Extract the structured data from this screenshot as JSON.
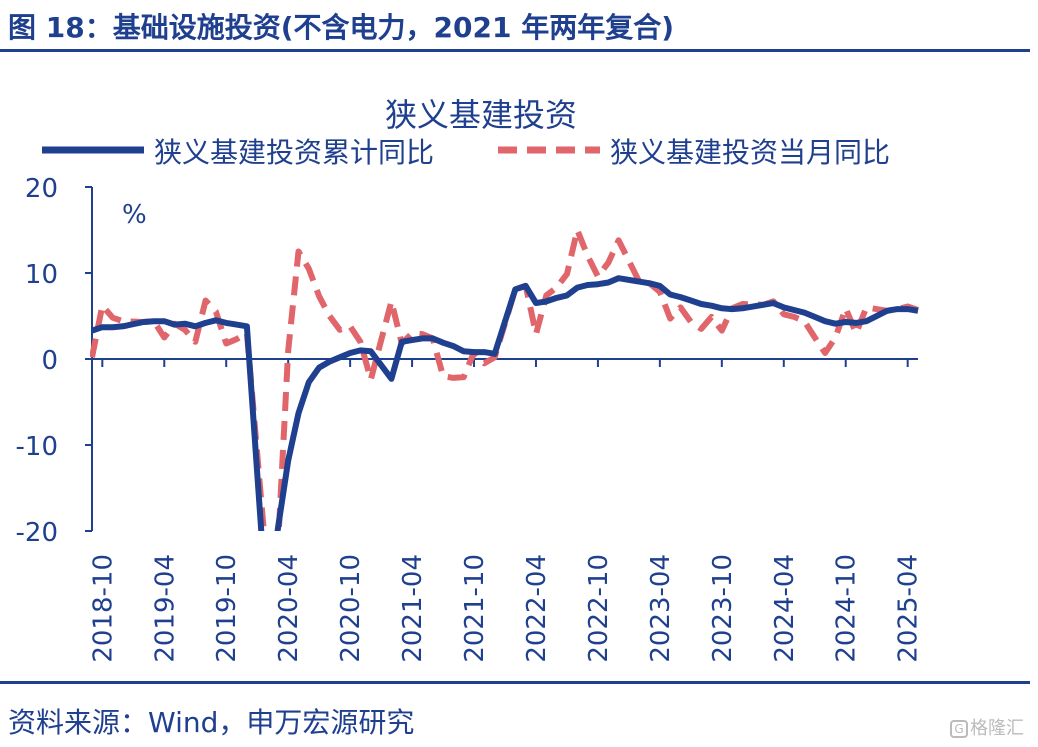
{
  "figure": {
    "title": "图 18：基础设施投资(不含电力，2021 年两年复合)",
    "source": "资料来源：Wind，申万宏源研究",
    "watermark": "格隆汇"
  },
  "colors": {
    "brand": "#1f3f8f",
    "cumulative": "#1f3f8f",
    "monthly": "#e0666b",
    "axis": "#1f3f8f"
  },
  "chart_data": {
    "type": "line",
    "title": "狭义基建投资",
    "ylabel": "%",
    "xlabel": "",
    "ylim": [
      -20,
      20
    ],
    "yticks": [
      20,
      10,
      0,
      -10,
      -20
    ],
    "xtick_labels": [
      "2018-10",
      "2019-04",
      "2019-10",
      "2020-04",
      "2020-10",
      "2021-04",
      "2021-10",
      "2022-04",
      "2022-10",
      "2023-04",
      "2023-10",
      "2024-04",
      "2024-10",
      "2025-04"
    ],
    "grid": false,
    "legend_position": "top",
    "series": [
      {
        "name": "狭义基建投资累计同比",
        "style": "solid",
        "points": [
          [
            "2018-09",
            3.3
          ],
          [
            "2018-10",
            3.7
          ],
          [
            "2018-11",
            3.7
          ],
          [
            "2018-12",
            3.8
          ],
          [
            "2019-02",
            4.3
          ],
          [
            "2019-03",
            4.4
          ],
          [
            "2019-04",
            4.4
          ],
          [
            "2019-05",
            4.0
          ],
          [
            "2019-06",
            4.1
          ],
          [
            "2019-07",
            3.8
          ],
          [
            "2019-08",
            4.2
          ],
          [
            "2019-09",
            4.5
          ],
          [
            "2019-10",
            4.2
          ],
          [
            "2019-11",
            4.0
          ],
          [
            "2019-12",
            3.8
          ],
          [
            "2020-02",
            -30.3
          ],
          [
            "2020-03",
            -19.7
          ],
          [
            "2020-04",
            -11.8
          ],
          [
            "2020-05",
            -6.3
          ],
          [
            "2020-06",
            -2.7
          ],
          [
            "2020-07",
            -1.0
          ],
          [
            "2020-08",
            -0.3
          ],
          [
            "2020-09",
            0.2
          ],
          [
            "2020-10",
            0.7
          ],
          [
            "2020-11",
            1.0
          ],
          [
            "2020-12",
            0.9
          ],
          [
            "2021-02",
            -2.3
          ],
          [
            "2021-03",
            2.0
          ],
          [
            "2021-04",
            2.2
          ],
          [
            "2021-05",
            2.4
          ],
          [
            "2021-06",
            2.4
          ],
          [
            "2021-07",
            1.9
          ],
          [
            "2021-08",
            1.5
          ],
          [
            "2021-09",
            0.9
          ],
          [
            "2021-10",
            0.8
          ],
          [
            "2021-11",
            0.8
          ],
          [
            "2021-12",
            0.6
          ],
          [
            "2022-02",
            8.1
          ],
          [
            "2022-03",
            8.5
          ],
          [
            "2022-04",
            6.5
          ],
          [
            "2022-05",
            6.7
          ],
          [
            "2022-06",
            7.1
          ],
          [
            "2022-07",
            7.4
          ],
          [
            "2022-08",
            8.3
          ],
          [
            "2022-09",
            8.6
          ],
          [
            "2022-10",
            8.7
          ],
          [
            "2022-11",
            8.9
          ],
          [
            "2022-12",
            9.4
          ],
          [
            "2023-02",
            9.0
          ],
          [
            "2023-03",
            8.8
          ],
          [
            "2023-04",
            8.5
          ],
          [
            "2023-05",
            7.5
          ],
          [
            "2023-06",
            7.2
          ],
          [
            "2023-07",
            6.8
          ],
          [
            "2023-08",
            6.4
          ],
          [
            "2023-09",
            6.2
          ],
          [
            "2023-10",
            5.9
          ],
          [
            "2023-11",
            5.8
          ],
          [
            "2023-12",
            5.9
          ],
          [
            "2024-02",
            6.3
          ],
          [
            "2024-03",
            6.5
          ],
          [
            "2024-04",
            6.0
          ],
          [
            "2024-05",
            5.7
          ],
          [
            "2024-06",
            5.4
          ],
          [
            "2024-07",
            4.9
          ],
          [
            "2024-08",
            4.4
          ],
          [
            "2024-09",
            4.1
          ],
          [
            "2024-10",
            4.3
          ],
          [
            "2024-11",
            4.2
          ],
          [
            "2024-12",
            4.4
          ],
          [
            "2025-02",
            5.6
          ],
          [
            "2025-03",
            5.8
          ],
          [
            "2025-04",
            5.8
          ],
          [
            "2025-05",
            5.6
          ]
        ]
      },
      {
        "name": "狭义基建投资当月同比",
        "style": "dashed",
        "points": [
          [
            "2018-09",
            0.2
          ],
          [
            "2018-10",
            6.2
          ],
          [
            "2018-11",
            4.8
          ],
          [
            "2018-12",
            4.4
          ],
          [
            "2019-02",
            4.3
          ],
          [
            "2019-03",
            4.4
          ],
          [
            "2019-04",
            2.5
          ],
          [
            "2019-05",
            4.1
          ],
          [
            "2019-06",
            3.4
          ],
          [
            "2019-07",
            2.0
          ],
          [
            "2019-08",
            6.8
          ],
          [
            "2019-09",
            5.5
          ],
          [
            "2019-10",
            1.8
          ],
          [
            "2019-11",
            2.3
          ],
          [
            "2019-12",
            3.0
          ],
          [
            "2020-02",
            -25.0
          ],
          [
            "2020-03",
            -22.0
          ],
          [
            "2020-04",
            1.0
          ],
          [
            "2020-05",
            12.5
          ],
          [
            "2020-06",
            10.5
          ],
          [
            "2020-07",
            7.3
          ],
          [
            "2020-08",
            5.0
          ],
          [
            "2020-09",
            3.4
          ],
          [
            "2020-10",
            3.8
          ],
          [
            "2020-11",
            2.0
          ],
          [
            "2020-12",
            -2.4
          ],
          [
            "2021-02",
            6.7
          ],
          [
            "2021-03",
            1.8
          ],
          [
            "2021-04",
            3.0
          ],
          [
            "2021-05",
            2.9
          ],
          [
            "2021-06",
            2.4
          ],
          [
            "2021-07",
            -2.0
          ],
          [
            "2021-08",
            -2.2
          ],
          [
            "2021-09",
            -2.1
          ],
          [
            "2021-10",
            0.8
          ],
          [
            "2021-11",
            -0.5
          ],
          [
            "2021-12",
            0.2
          ],
          [
            "2022-02",
            8.1
          ],
          [
            "2022-03",
            8.5
          ],
          [
            "2022-04",
            2.9
          ],
          [
            "2022-05",
            7.4
          ],
          [
            "2022-06",
            8.3
          ],
          [
            "2022-07",
            9.9
          ],
          [
            "2022-08",
            15.0
          ],
          [
            "2022-09",
            12.0
          ],
          [
            "2022-10",
            9.6
          ],
          [
            "2022-11",
            11.2
          ],
          [
            "2022-12",
            13.8
          ],
          [
            "2023-02",
            9.0
          ],
          [
            "2023-03",
            8.8
          ],
          [
            "2023-04",
            7.8
          ],
          [
            "2023-05",
            4.7
          ],
          [
            "2023-06",
            6.0
          ],
          [
            "2023-07",
            4.3
          ],
          [
            "2023-08",
            3.5
          ],
          [
            "2023-09",
            4.9
          ],
          [
            "2023-10",
            3.3
          ],
          [
            "2023-11",
            5.9
          ],
          [
            "2023-12",
            6.4
          ],
          [
            "2024-02",
            6.3
          ],
          [
            "2024-03",
            6.7
          ],
          [
            "2024-04",
            5.2
          ],
          [
            "2024-05",
            4.9
          ],
          [
            "2024-06",
            4.4
          ],
          [
            "2024-07",
            2.5
          ],
          [
            "2024-08",
            0.7
          ],
          [
            "2024-09",
            2.5
          ],
          [
            "2024-10",
            5.9
          ],
          [
            "2024-11",
            3.0
          ],
          [
            "2024-12",
            6.0
          ],
          [
            "2025-02",
            5.6
          ],
          [
            "2025-03",
            5.8
          ],
          [
            "2025-04",
            6.1
          ],
          [
            "2025-05",
            5.7
          ]
        ]
      }
    ]
  }
}
